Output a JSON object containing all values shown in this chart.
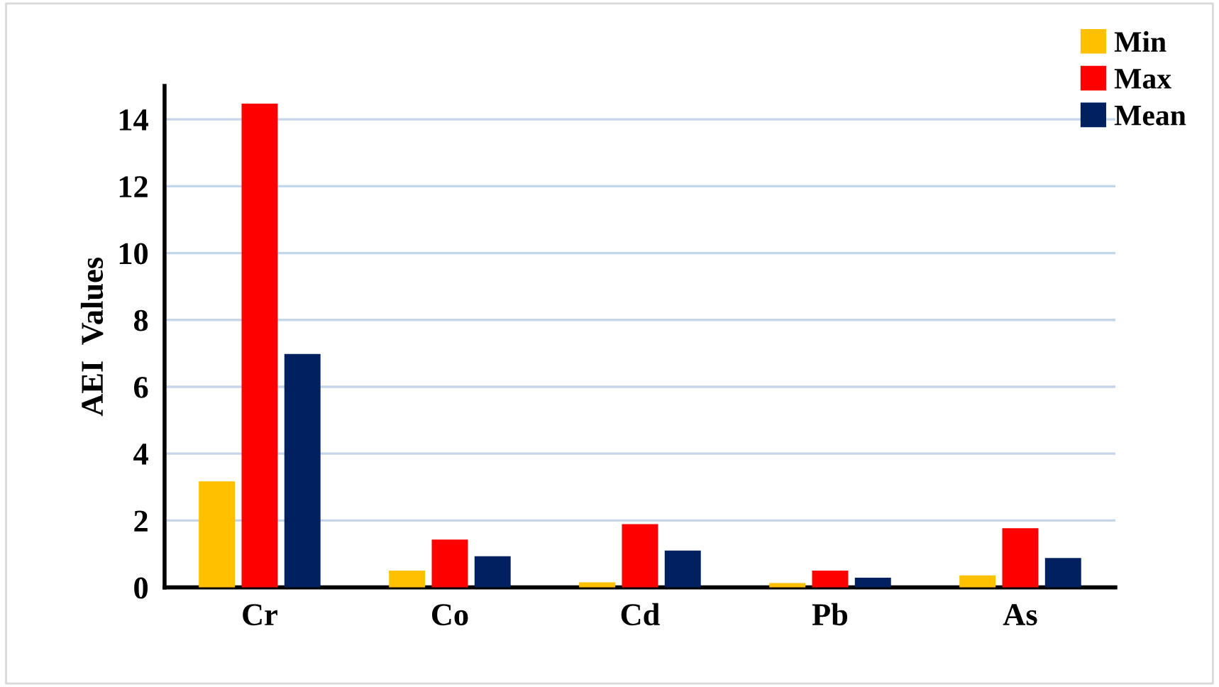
{
  "chart_data": {
    "type": "bar",
    "ylabel": "AEI  Values",
    "categories": [
      "Cr",
      "Co",
      "Cd",
      "Pb",
      "As"
    ],
    "series": [
      {
        "name": "Min",
        "color": "#ffc000",
        "values": [
          3.17,
          0.5,
          0.15,
          0.13,
          0.36
        ]
      },
      {
        "name": "Max",
        "color": "#ff0000",
        "values": [
          14.47,
          1.43,
          1.89,
          0.5,
          1.77
        ]
      },
      {
        "name": "Mean",
        "color": "#002060",
        "values": [
          6.98,
          0.93,
          1.1,
          0.29,
          0.88
        ]
      }
    ],
    "ylim": [
      0,
      15
    ],
    "yticks": [
      0,
      2,
      4,
      6,
      8,
      10,
      12,
      14
    ],
    "grid": "y",
    "legend": "top right"
  }
}
